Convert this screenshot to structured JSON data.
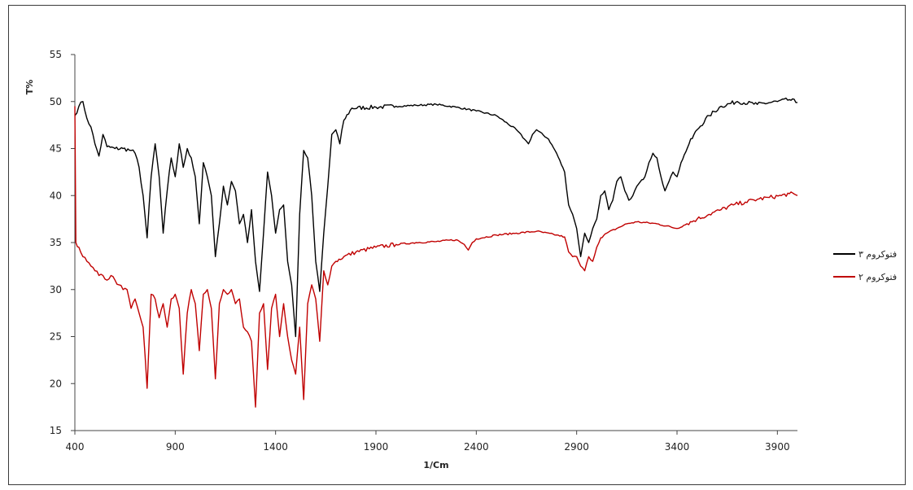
{
  "chart_data": {
    "type": "line",
    "xlabel": "1/Cm",
    "ylabel": "T%",
    "xlim": [
      400,
      4000
    ],
    "ylim": [
      15,
      55
    ],
    "x_ticks": [
      400,
      900,
      1400,
      1900,
      2400,
      2900,
      3400,
      3900
    ],
    "y_ticks": [
      15,
      20,
      25,
      30,
      35,
      40,
      45,
      50,
      55
    ],
    "grid": false,
    "legend_position": "right",
    "series": [
      {
        "name": "فتوکروم ۳",
        "color": "#000000",
        "points": [
          [
            400,
            48.5
          ],
          [
            420,
            49.5
          ],
          [
            440,
            50.0
          ],
          [
            460,
            48.2
          ],
          [
            480,
            47.3
          ],
          [
            500,
            45.5
          ],
          [
            520,
            44.2
          ],
          [
            540,
            46.5
          ],
          [
            560,
            45.2
          ],
          [
            600,
            45.0
          ],
          [
            640,
            45.0
          ],
          [
            680,
            44.8
          ],
          [
            700,
            44.5
          ],
          [
            720,
            43.0
          ],
          [
            740,
            40.0
          ],
          [
            760,
            35.5
          ],
          [
            780,
            42.0
          ],
          [
            800,
            45.5
          ],
          [
            820,
            42.0
          ],
          [
            840,
            36.0
          ],
          [
            860,
            40.5
          ],
          [
            880,
            44.0
          ],
          [
            900,
            42.0
          ],
          [
            920,
            45.5
          ],
          [
            940,
            43.0
          ],
          [
            960,
            45.0
          ],
          [
            980,
            44.0
          ],
          [
            1000,
            42.0
          ],
          [
            1020,
            37.0
          ],
          [
            1040,
            43.5
          ],
          [
            1060,
            42.0
          ],
          [
            1080,
            40.0
          ],
          [
            1100,
            33.5
          ],
          [
            1120,
            37.0
          ],
          [
            1140,
            41.0
          ],
          [
            1160,
            39.0
          ],
          [
            1180,
            41.5
          ],
          [
            1200,
            40.5
          ],
          [
            1220,
            37.0
          ],
          [
            1240,
            38.0
          ],
          [
            1260,
            35.0
          ],
          [
            1280,
            38.5
          ],
          [
            1300,
            33.0
          ],
          [
            1320,
            29.8
          ],
          [
            1340,
            36.0
          ],
          [
            1360,
            42.5
          ],
          [
            1380,
            40.0
          ],
          [
            1400,
            36.0
          ],
          [
            1420,
            38.5
          ],
          [
            1440,
            39.0
          ],
          [
            1460,
            33.0
          ],
          [
            1480,
            30.5
          ],
          [
            1500,
            25.0
          ],
          [
            1520,
            38.0
          ],
          [
            1540,
            44.8
          ],
          [
            1560,
            44.0
          ],
          [
            1580,
            40.0
          ],
          [
            1600,
            33.0
          ],
          [
            1620,
            29.8
          ],
          [
            1640,
            36.0
          ],
          [
            1660,
            41.0
          ],
          [
            1680,
            46.5
          ],
          [
            1700,
            47.0
          ],
          [
            1720,
            45.5
          ],
          [
            1740,
            48.0
          ],
          [
            1780,
            49.3
          ],
          [
            1900,
            49.4
          ],
          [
            2000,
            49.5
          ],
          [
            2100,
            49.6
          ],
          [
            2200,
            49.7
          ],
          [
            2300,
            49.4
          ],
          [
            2400,
            49.0
          ],
          [
            2500,
            48.5
          ],
          [
            2600,
            47.0
          ],
          [
            2640,
            46.0
          ],
          [
            2660,
            45.5
          ],
          [
            2680,
            46.5
          ],
          [
            2700,
            47.0
          ],
          [
            2760,
            46.0
          ],
          [
            2800,
            44.5
          ],
          [
            2840,
            42.5
          ],
          [
            2860,
            39.0
          ],
          [
            2880,
            38.0
          ],
          [
            2900,
            36.5
          ],
          [
            2920,
            33.5
          ],
          [
            2940,
            36.0
          ],
          [
            2960,
            35.0
          ],
          [
            2980,
            36.5
          ],
          [
            3000,
            37.5
          ],
          [
            3020,
            40.0
          ],
          [
            3040,
            40.5
          ],
          [
            3060,
            38.5
          ],
          [
            3080,
            39.5
          ],
          [
            3100,
            41.5
          ],
          [
            3120,
            42.0
          ],
          [
            3140,
            40.5
          ],
          [
            3160,
            39.5
          ],
          [
            3180,
            40.0
          ],
          [
            3200,
            41.0
          ],
          [
            3240,
            42.0
          ],
          [
            3260,
            43.5
          ],
          [
            3280,
            44.5
          ],
          [
            3300,
            44.0
          ],
          [
            3320,
            42.0
          ],
          [
            3340,
            40.5
          ],
          [
            3360,
            41.5
          ],
          [
            3380,
            42.5
          ],
          [
            3400,
            42.0
          ],
          [
            3420,
            43.5
          ],
          [
            3460,
            45.5
          ],
          [
            3500,
            47.0
          ],
          [
            3560,
            48.5
          ],
          [
            3620,
            49.5
          ],
          [
            3700,
            50.0
          ],
          [
            3800,
            49.7
          ],
          [
            3900,
            50.0
          ],
          [
            3960,
            50.2
          ],
          [
            4000,
            49.9
          ]
        ]
      },
      {
        "name": "فتوکروم ۲",
        "color": "#c00000",
        "points": [
          [
            400,
            49.5
          ],
          [
            405,
            35.0
          ],
          [
            420,
            34.5
          ],
          [
            440,
            33.5
          ],
          [
            460,
            33.0
          ],
          [
            480,
            32.5
          ],
          [
            500,
            32.0
          ],
          [
            520,
            31.5
          ],
          [
            540,
            31.5
          ],
          [
            560,
            31.0
          ],
          [
            580,
            31.5
          ],
          [
            600,
            31.0
          ],
          [
            620,
            30.5
          ],
          [
            640,
            30.0
          ],
          [
            660,
            30.0
          ],
          [
            680,
            28.0
          ],
          [
            700,
            29.0
          ],
          [
            720,
            27.5
          ],
          [
            740,
            26.0
          ],
          [
            760,
            19.5
          ],
          [
            780,
            29.5
          ],
          [
            800,
            29.0
          ],
          [
            820,
            27.0
          ],
          [
            840,
            28.5
          ],
          [
            860,
            26.0
          ],
          [
            880,
            29.0
          ],
          [
            900,
            29.5
          ],
          [
            920,
            28.0
          ],
          [
            940,
            21.0
          ],
          [
            960,
            27.5
          ],
          [
            980,
            30.0
          ],
          [
            1000,
            28.5
          ],
          [
            1020,
            23.5
          ],
          [
            1040,
            29.5
          ],
          [
            1060,
            30.0
          ],
          [
            1080,
            28.0
          ],
          [
            1100,
            20.5
          ],
          [
            1120,
            28.5
          ],
          [
            1140,
            30.0
          ],
          [
            1160,
            29.5
          ],
          [
            1180,
            30.0
          ],
          [
            1200,
            28.5
          ],
          [
            1220,
            29.0
          ],
          [
            1240,
            26.0
          ],
          [
            1260,
            25.5
          ],
          [
            1280,
            24.5
          ],
          [
            1300,
            17.5
          ],
          [
            1320,
            27.5
          ],
          [
            1340,
            28.5
          ],
          [
            1360,
            21.5
          ],
          [
            1380,
            28.0
          ],
          [
            1400,
            29.5
          ],
          [
            1420,
            25.0
          ],
          [
            1440,
            28.5
          ],
          [
            1460,
            25.0
          ],
          [
            1480,
            22.5
          ],
          [
            1500,
            21.0
          ],
          [
            1520,
            26.0
          ],
          [
            1540,
            18.3
          ],
          [
            1560,
            28.5
          ],
          [
            1580,
            30.5
          ],
          [
            1600,
            29.0
          ],
          [
            1620,
            24.5
          ],
          [
            1640,
            32.0
          ],
          [
            1660,
            30.5
          ],
          [
            1680,
            32.5
          ],
          [
            1700,
            33.0
          ],
          [
            1740,
            33.5
          ],
          [
            1800,
            34.0
          ],
          [
            1900,
            34.5
          ],
          [
            2000,
            34.8
          ],
          [
            2100,
            35.0
          ],
          [
            2200,
            35.1
          ],
          [
            2300,
            35.3
          ],
          [
            2340,
            34.8
          ],
          [
            2360,
            34.2
          ],
          [
            2380,
            35.0
          ],
          [
            2400,
            35.4
          ],
          [
            2500,
            35.8
          ],
          [
            2600,
            36.0
          ],
          [
            2700,
            36.2
          ],
          [
            2800,
            35.8
          ],
          [
            2840,
            35.6
          ],
          [
            2860,
            34.0
          ],
          [
            2880,
            33.5
          ],
          [
            2900,
            33.5
          ],
          [
            2920,
            32.5
          ],
          [
            2940,
            32.0
          ],
          [
            2960,
            33.5
          ],
          [
            2980,
            33.0
          ],
          [
            3000,
            34.5
          ],
          [
            3020,
            35.5
          ],
          [
            3050,
            36.0
          ],
          [
            3100,
            36.5
          ],
          [
            3150,
            37.0
          ],
          [
            3200,
            37.2
          ],
          [
            3300,
            37.0
          ],
          [
            3400,
            36.5
          ],
          [
            3450,
            37.0
          ],
          [
            3500,
            37.5
          ],
          [
            3560,
            38.0
          ],
          [
            3620,
            38.5
          ],
          [
            3680,
            39.0
          ],
          [
            3740,
            39.3
          ],
          [
            3800,
            39.6
          ],
          [
            3860,
            39.8
          ],
          [
            3920,
            40.0
          ],
          [
            3960,
            40.2
          ],
          [
            4000,
            40.0
          ]
        ]
      }
    ]
  }
}
